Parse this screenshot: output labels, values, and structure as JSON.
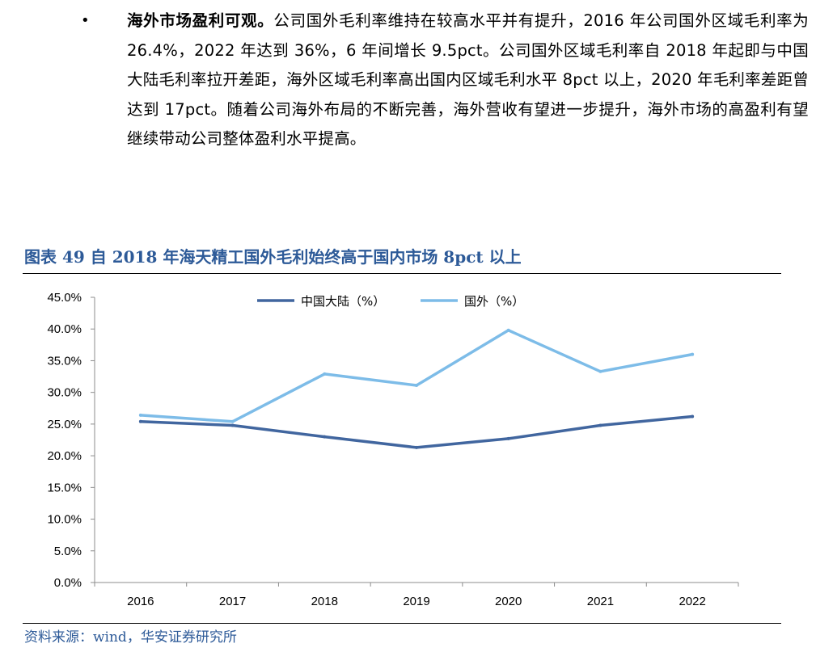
{
  "paragraph": {
    "bullet": "•",
    "lead": "海外市场盈利可观。",
    "body": "公司国外毛利率维持在较高水平并有提升，2016 年公司国外区域毛利率为 26.4%，2022 年达到 36%，6 年间增长 9.5pct。公司国外区域毛利率自 2018 年起即与中国大陆毛利率拉开差距，海外区域毛利率高出国内区域毛利水平 8pct 以上，2020 年毛利率差距曾达到 17pct。随着公司海外布局的不断完善，海外营收有望进一步提升，海外市场的高盈利有望继续带动公司整体盈利水平提高。"
  },
  "figure": {
    "title": "图表 49 自 2018 年海天精工国外毛利始终高于国内市场 8pct 以上",
    "source": "资料来源：wind，华安证券研究所"
  },
  "colors": {
    "title": "#2d5a98",
    "series_domestic": "#41669f",
    "series_foreign": "#7dbce8",
    "axis": "#8c8c8c"
  },
  "chart_data": {
    "type": "line",
    "title": "",
    "xlabel": "",
    "ylabel": "",
    "categories": [
      "2016",
      "2017",
      "2018",
      "2019",
      "2020",
      "2021",
      "2022"
    ],
    "ylim": [
      0,
      45
    ],
    "yticks": [
      0,
      5,
      10,
      15,
      20,
      25,
      30,
      35,
      40,
      45
    ],
    "ytick_labels": [
      "0.0%",
      "5.0%",
      "10.0%",
      "15.0%",
      "20.0%",
      "25.0%",
      "30.0%",
      "35.0%",
      "40.0%",
      "45.0%"
    ],
    "grid": false,
    "legend": "top-center",
    "series": [
      {
        "name": "中国大陆（%）",
        "values": [
          25.4,
          24.8,
          23.0,
          21.3,
          22.7,
          24.8,
          26.2
        ]
      },
      {
        "name": "国外（%）",
        "values": [
          26.4,
          25.4,
          32.9,
          31.1,
          39.8,
          33.3,
          36.0
        ]
      }
    ]
  }
}
